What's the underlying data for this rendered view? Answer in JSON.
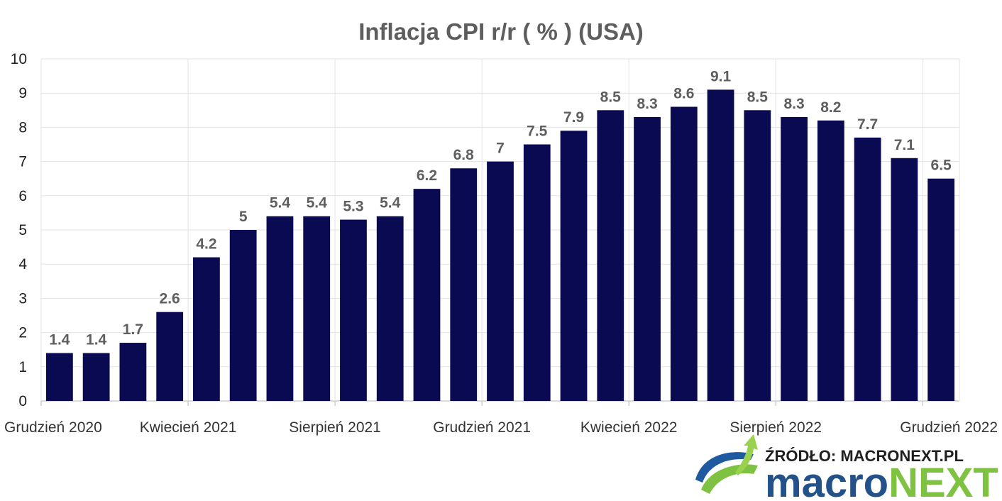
{
  "chart_data": {
    "type": "bar",
    "title": "Inflacja CPI r/r ( % ) (USA)",
    "xlabel": "",
    "ylabel": "",
    "ylim": [
      0,
      10
    ],
    "yticks": [
      "0",
      "1",
      "2",
      "3",
      "4",
      "5",
      "6",
      "7",
      "8",
      "9",
      "10"
    ],
    "grid": true,
    "legend": "none",
    "bar_color": "#0a0a52",
    "xtick_labels": [
      "Grudzień 2020",
      "Kwiecień 2021",
      "Sierpień 2021",
      "Grudzień 2021",
      "Kwiecień 2022",
      "Sierpień 2022",
      "Grudzień 2022"
    ],
    "values": [
      1.4,
      1.4,
      1.7,
      2.6,
      4.2,
      5,
      5.4,
      5.4,
      5.3,
      5.4,
      6.2,
      6.8,
      7,
      7.5,
      7.9,
      8.5,
      8.3,
      8.6,
      9.1,
      8.5,
      8.3,
      8.2,
      7.7,
      7.1,
      6.5
    ],
    "data_labels": [
      "1.4",
      "1.4",
      "1.7",
      "2.6",
      "4.2",
      "5",
      "5.4",
      "5.4",
      "5.3",
      "5.4",
      "6.2",
      "6.8",
      "7",
      "7.5",
      "7.9",
      "8.5",
      "8.3",
      "8.6",
      "9.1",
      "8.5",
      "8.3",
      "8.2",
      "7.7",
      "7.1",
      "6.5"
    ]
  },
  "source": {
    "text": "ŹRÓDŁO: MACRONEXT.PL",
    "brand_part1": "macro",
    "brand_part2": "NEXT",
    "logo_colors": [
      "#23528a",
      "#7fc241"
    ]
  }
}
